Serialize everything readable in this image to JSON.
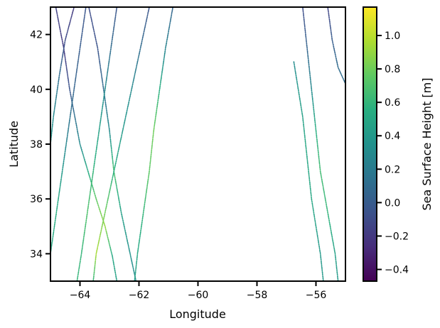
{
  "chart_data": {
    "type": "scatter",
    "title": "",
    "xlabel": "Longitude",
    "ylabel": "Latitude",
    "xlim": [
      -65.0,
      -55.0
    ],
    "ylim": [
      33.0,
      43.0
    ],
    "xticks": [
      -64,
      -62,
      -60,
      -58,
      -56
    ],
    "xtick_labels": [
      "−64",
      "−62",
      "−60",
      "−58",
      "−56"
    ],
    "yticks": [
      34,
      36,
      38,
      40,
      42
    ],
    "ytick_labels": [
      "34",
      "36",
      "38",
      "40",
      "42"
    ],
    "grid": false,
    "colorbar": {
      "label": "Sea Surface Height [m]",
      "colormap": "viridis",
      "range": [
        -0.47,
        1.17
      ],
      "ticks": [
        -0.4,
        -0.2,
        0.0,
        0.2,
        0.4,
        0.6,
        0.8,
        1.0
      ],
      "tick_labels": [
        "−0.4",
        "−0.2",
        "0.0",
        "0.2",
        "0.4",
        "0.6",
        "0.8",
        "1.0"
      ]
    },
    "tracks": [
      {
        "points": [
          [
            -64.82,
            43.0,
            -0.15
          ],
          [
            -64.55,
            41.5,
            -0.2
          ],
          [
            -64.35,
            40.0,
            -0.05
          ],
          [
            -64.0,
            38.0,
            0.3
          ],
          [
            -63.45,
            36.0,
            0.75
          ],
          [
            -63.15,
            35.0,
            0.9
          ],
          [
            -62.9,
            33.9,
            0.5
          ],
          [
            -62.75,
            33.0,
            0.45
          ]
        ]
      },
      {
        "points": [
          [
            -64.2,
            43.0,
            -0.2
          ],
          [
            -64.5,
            41.8,
            -0.1
          ],
          [
            -64.7,
            40.5,
            0.1
          ],
          [
            -64.9,
            39.0,
            0.3
          ],
          [
            -65.0,
            38.0,
            0.4
          ]
        ]
      },
      {
        "points": [
          [
            -63.7,
            43.0,
            -0.1
          ],
          [
            -63.4,
            41.5,
            -0.05
          ],
          [
            -63.2,
            40.0,
            0.1
          ],
          [
            -63.0,
            38.5,
            0.3
          ],
          [
            -62.85,
            37.0,
            0.7
          ],
          [
            -62.6,
            35.5,
            0.45
          ],
          [
            -62.3,
            34.0,
            0.35
          ],
          [
            -62.1,
            33.0,
            0.3
          ]
        ]
      },
      {
        "points": [
          [
            -63.8,
            43.0,
            -0.05
          ],
          [
            -64.0,
            41.5,
            0.0
          ],
          [
            -64.2,
            40.0,
            0.05
          ],
          [
            -64.4,
            38.5,
            0.2
          ],
          [
            -64.6,
            37.0,
            0.4
          ],
          [
            -64.8,
            35.5,
            0.55
          ],
          [
            -65.0,
            34.0,
            0.5
          ]
        ]
      },
      {
        "points": [
          [
            -62.75,
            43.0,
            -0.05
          ],
          [
            -62.95,
            41.5,
            0.1
          ],
          [
            -63.15,
            40.0,
            0.3
          ],
          [
            -63.35,
            38.5,
            0.45
          ],
          [
            -63.55,
            37.0,
            0.6
          ],
          [
            -63.75,
            35.5,
            0.7
          ],
          [
            -63.95,
            34.0,
            0.6
          ],
          [
            -64.1,
            33.0,
            0.6
          ]
        ]
      },
      {
        "points": [
          [
            -61.65,
            43.0,
            -0.05
          ],
          [
            -61.95,
            41.5,
            0.1
          ],
          [
            -62.25,
            40.0,
            0.3
          ],
          [
            -62.55,
            38.5,
            0.4
          ],
          [
            -62.85,
            37.0,
            0.55
          ],
          [
            -63.15,
            35.5,
            0.8
          ],
          [
            -63.45,
            34.0,
            0.95
          ],
          [
            -63.55,
            33.0,
            0.6
          ]
        ]
      },
      {
        "points": [
          [
            -60.85,
            43.0,
            0.05
          ],
          [
            -61.1,
            41.5,
            0.25
          ],
          [
            -61.3,
            40.0,
            0.55
          ],
          [
            -61.5,
            38.5,
            0.8
          ],
          [
            -61.65,
            37.0,
            0.75
          ],
          [
            -61.85,
            35.5,
            0.6
          ],
          [
            -62.05,
            34.0,
            0.5
          ],
          [
            -62.15,
            33.0,
            0.45
          ]
        ]
      },
      {
        "points": [
          [
            -56.45,
            43.0,
            -0.1
          ],
          [
            -56.3,
            41.5,
            0.05
          ],
          [
            -56.15,
            40.0,
            0.3
          ],
          [
            -56.0,
            38.5,
            0.55
          ],
          [
            -55.85,
            37.0,
            0.65
          ],
          [
            -55.6,
            35.5,
            0.6
          ],
          [
            -55.35,
            34.0,
            0.45
          ],
          [
            -55.25,
            33.0,
            0.4
          ]
        ]
      },
      {
        "points": [
          [
            -55.6,
            43.0,
            -0.15
          ],
          [
            -55.45,
            41.8,
            0.0
          ],
          [
            -55.25,
            40.8,
            0.1
          ],
          [
            -55.0,
            40.2,
            0.1
          ]
        ]
      },
      {
        "points": [
          [
            -56.75,
            41.0,
            0.3
          ],
          [
            -56.6,
            40.0,
            0.4
          ],
          [
            -56.45,
            39.0,
            0.45
          ],
          [
            -56.35,
            38.0,
            0.5
          ],
          [
            -56.25,
            37.0,
            0.5
          ],
          [
            -56.15,
            36.0,
            0.5
          ],
          [
            -56.0,
            35.0,
            0.45
          ],
          [
            -55.85,
            34.0,
            0.4
          ],
          [
            -55.75,
            33.0,
            0.4
          ]
        ]
      }
    ]
  }
}
